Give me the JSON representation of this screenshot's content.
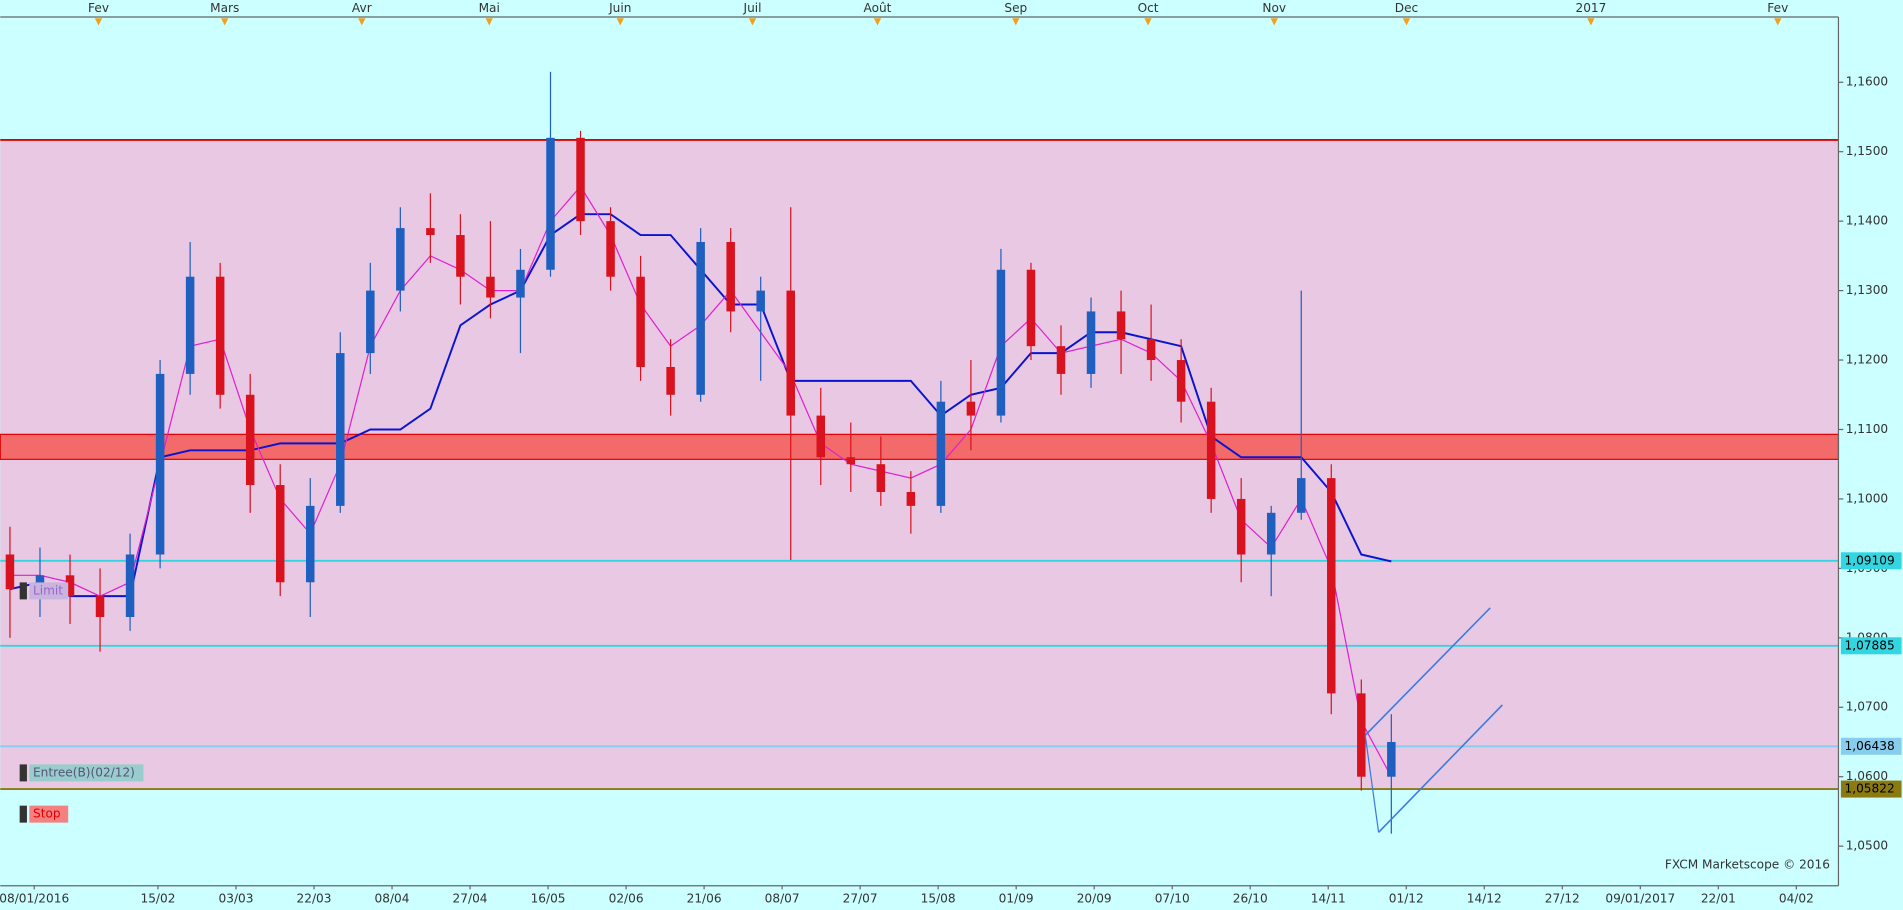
{
  "chart_data": {
    "type": "candlestick",
    "watermark": "FXCM Marketscope © 2016",
    "ylim": [
      1.0443,
      1.1694
    ],
    "yticks": [
      {
        "value": 1.05,
        "label": "1,0500"
      },
      {
        "value": 1.06,
        "label": "1,0600"
      },
      {
        "value": 1.07,
        "label": "1,0700"
      },
      {
        "value": 1.08,
        "label": "1,0800"
      },
      {
        "value": 1.09,
        "label": "1,0900"
      },
      {
        "value": 1.1,
        "label": "1,1000"
      },
      {
        "value": 1.11,
        "label": "1,1100"
      },
      {
        "value": 1.12,
        "label": "1,1200"
      },
      {
        "value": 1.13,
        "label": "1,1300"
      },
      {
        "value": 1.14,
        "label": "1,1400"
      },
      {
        "value": 1.15,
        "label": "1,1500"
      },
      {
        "value": 1.16,
        "label": "1,1600"
      }
    ],
    "x_labels": [
      "08/01/2016",
      "15/02",
      "03/03",
      "22/03",
      "08/04",
      "27/04",
      "16/05",
      "02/06",
      "21/06",
      "08/07",
      "27/07",
      "15/08",
      "01/09",
      "20/09",
      "07/10",
      "26/10",
      "14/11",
      "01/12",
      "14/12",
      "27/12",
      "09/01/2017",
      "22/01",
      "04/02"
    ],
    "month_labels": [
      "Fev",
      "Mars",
      "Avr",
      "Mai",
      "Juin",
      "Juil",
      "Août",
      "Sep",
      "Oct",
      "Nov",
      "Dec",
      "2017",
      "Fev"
    ],
    "up_color": "#1f5fbf",
    "down_color": "#d9121f",
    "open": [
      1.092,
      1.087,
      1.089,
      1.086,
      1.083,
      1.092,
      1.118,
      1.132,
      1.115,
      1.102,
      1.088,
      1.099,
      1.121,
      1.13,
      1.139,
      1.138,
      1.132,
      1.129,
      1.133,
      1.152,
      1.14,
      1.132,
      1.119,
      1.115,
      1.137,
      1.127,
      1.13,
      1.112,
      1.106,
      1.105,
      1.101,
      1.099,
      1.114,
      1.112,
      1.133,
      1.122,
      1.118,
      1.127,
      1.123,
      1.12,
      1.114,
      1.1,
      1.092,
      1.098,
      1.103,
      1.072,
      1.06
    ],
    "high": [
      1.096,
      1.093,
      1.092,
      1.09,
      1.095,
      1.12,
      1.137,
      1.134,
      1.118,
      1.105,
      1.103,
      1.124,
      1.134,
      1.142,
      1.144,
      1.141,
      1.14,
      1.136,
      1.1615,
      1.153,
      1.142,
      1.135,
      1.123,
      1.139,
      1.139,
      1.132,
      1.142,
      1.116,
      1.111,
      1.109,
      1.104,
      1.117,
      1.12,
      1.136,
      1.134,
      1.125,
      1.129,
      1.13,
      1.128,
      1.123,
      1.116,
      1.103,
      1.099,
      1.13,
      1.105,
      1.074,
      1.069
    ],
    "low": [
      1.08,
      1.083,
      1.082,
      1.078,
      1.081,
      1.09,
      1.115,
      1.113,
      1.098,
      1.086,
      1.083,
      1.098,
      1.118,
      1.127,
      1.134,
      1.128,
      1.126,
      1.121,
      1.132,
      1.138,
      1.13,
      1.117,
      1.112,
      1.114,
      1.124,
      1.117,
      1.0912,
      1.102,
      1.101,
      1.099,
      1.095,
      1.098,
      1.107,
      1.111,
      1.12,
      1.115,
      1.116,
      1.118,
      1.117,
      1.111,
      1.098,
      1.088,
      1.086,
      1.097,
      1.069,
      1.058,
      1.0518
    ],
    "close": [
      1.087,
      1.089,
      1.086,
      1.083,
      1.092,
      1.118,
      1.132,
      1.115,
      1.102,
      1.088,
      1.099,
      1.121,
      1.13,
      1.139,
      1.138,
      1.132,
      1.129,
      1.133,
      1.152,
      1.14,
      1.132,
      1.119,
      1.115,
      1.137,
      1.127,
      1.13,
      1.112,
      1.106,
      1.105,
      1.101,
      1.099,
      1.114,
      1.112,
      1.133,
      1.122,
      1.118,
      1.127,
      1.123,
      1.12,
      1.114,
      1.1,
      1.092,
      1.098,
      1.103,
      1.072,
      1.06,
      1.065
    ],
    "series": [
      {
        "color": "#0a14d0",
        "values": [
          1.087,
          1.088,
          1.086,
          1.086,
          1.086,
          1.106,
          1.107,
          1.107,
          1.107,
          1.108,
          1.108,
          1.108,
          1.11,
          1.11,
          1.113,
          1.125,
          1.128,
          1.13,
          1.138,
          1.141,
          1.141,
          1.138,
          1.138,
          1.133,
          1.128,
          1.128,
          1.117,
          1.117,
          1.117,
          1.117,
          1.117,
          1.112,
          1.115,
          1.116,
          1.121,
          1.121,
          1.124,
          1.124,
          1.123,
          1.122,
          1.109,
          1.106,
          1.106,
          1.106,
          1.101,
          1.092,
          1.091
        ]
      },
      {
        "color": "#e020d0",
        "values": [
          1.089,
          1.089,
          1.088,
          1.086,
          1.088,
          1.105,
          1.122,
          1.123,
          1.11,
          1.1,
          1.095,
          1.105,
          1.122,
          1.13,
          1.135,
          1.133,
          1.13,
          1.13,
          1.14,
          1.145,
          1.138,
          1.128,
          1.122,
          1.125,
          1.13,
          1.124,
          1.118,
          1.108,
          1.105,
          1.104,
          1.103,
          1.105,
          1.11,
          1.122,
          1.126,
          1.121,
          1.122,
          1.123,
          1.121,
          1.117,
          1.108,
          1.097,
          1.093,
          1.1,
          1.09,
          1.068,
          1.06
        ]
      }
    ],
    "zone": {
      "high": 1.1517,
      "low": 1.05822,
      "color": "#e8c8e2"
    },
    "band": {
      "high": 1.1093,
      "low": 1.1057,
      "color": "#f26a6a"
    },
    "levels": [
      {
        "value": 1.1517,
        "color": "#e00000"
      },
      {
        "value": 1.09109,
        "color": "#33d6e0",
        "label": "1,09109"
      },
      {
        "value": 1.07885,
        "color": "#33d6e0",
        "label": "1,07885"
      },
      {
        "value": 1.06438,
        "color": "#88ccee",
        "label": "1,06438"
      },
      {
        "value": 1.05822,
        "color": "#8a7a10",
        "label": "1,05822"
      }
    ],
    "orders": [
      "Limit",
      "Entree(B)(02/12)",
      "Stop"
    ]
  }
}
